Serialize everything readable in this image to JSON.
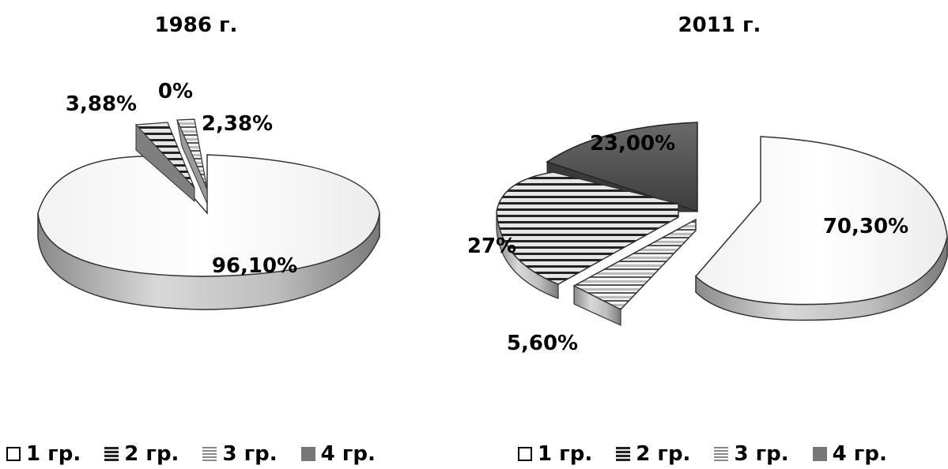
{
  "chart_data": [
    {
      "type": "pie",
      "title": "1986 г.",
      "categories": [
        "1 гр.",
        "2 гр.",
        "3 гр.",
        "4 гр."
      ],
      "values": [
        96.1,
        3.88,
        0,
        2.38
      ],
      "data_labels": [
        "96,10%",
        "3,88%",
        "0%",
        "2,38%"
      ],
      "legend": [
        "1 гр.",
        "2 гр.",
        "3 гр.",
        "4 гр."
      ],
      "legend_position": "bottom"
    },
    {
      "type": "pie",
      "title": "2011 г.",
      "categories": [
        "1 гр.",
        "2 гр.",
        "3 гр.",
        "4 гр."
      ],
      "values": [
        70.3,
        5.6,
        27,
        23.0
      ],
      "data_labels": [
        "70,30%",
        "5,60%",
        "27%",
        "23,00%"
      ],
      "legend": [
        "1 гр.",
        "2 гр.",
        "3 гр.",
        "4 гр."
      ],
      "legend_position": "bottom"
    }
  ]
}
